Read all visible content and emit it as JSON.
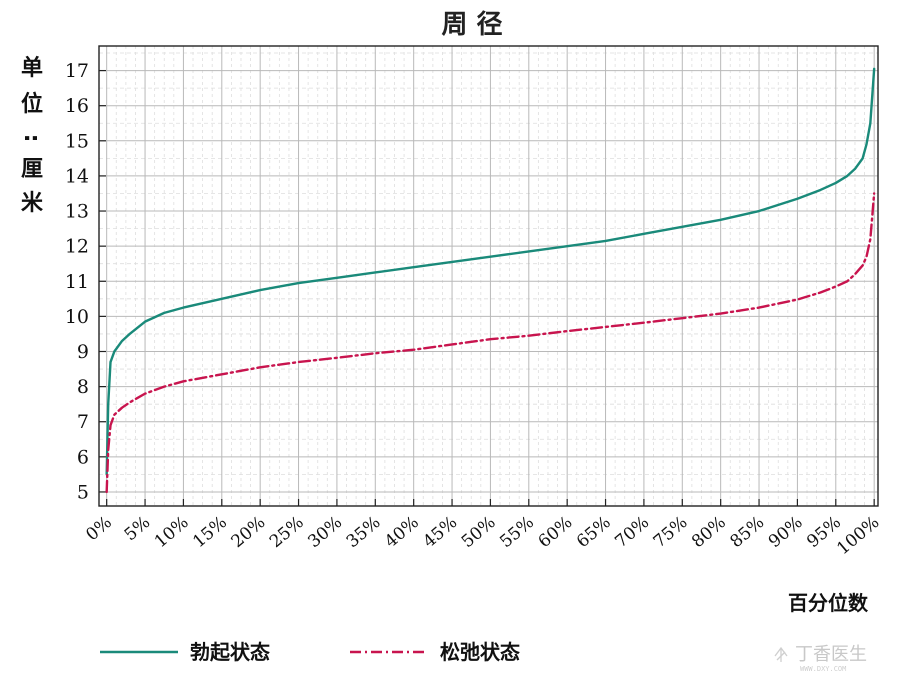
{
  "chart_data": {
    "type": "line",
    "title": "周 径",
    "ylabel_chars": [
      "单",
      "位",
      ":",
      "厘",
      "米"
    ],
    "xlabel": "百分位数",
    "ylim": [
      4.6,
      17.7
    ],
    "xlim": [
      -1,
      100.5
    ],
    "yticks": [
      5,
      6,
      7,
      8,
      9,
      10,
      11,
      12,
      13,
      14,
      15,
      16,
      17
    ],
    "xticks": [
      0,
      5,
      10,
      15,
      20,
      25,
      30,
      35,
      40,
      45,
      50,
      55,
      60,
      65,
      70,
      75,
      80,
      85,
      90,
      95,
      100
    ],
    "xtick_labels": [
      "0%",
      "5%",
      "10%",
      "15%",
      "20%",
      "25%",
      "30%",
      "35%",
      "40%",
      "45%",
      "50%",
      "55%",
      "60%",
      "65%",
      "70%",
      "75%",
      "80%",
      "85%",
      "90%",
      "95%",
      "100%"
    ],
    "grid": true,
    "legend_position": "bottom",
    "series": [
      {
        "name": "勃起状态",
        "color": "#1a8a7a",
        "style": "solid",
        "x": [
          0,
          0.2,
          0.5,
          1,
          2,
          3,
          5,
          7.5,
          10,
          15,
          20,
          25,
          30,
          35,
          40,
          45,
          50,
          55,
          60,
          65,
          70,
          75,
          80,
          85,
          90,
          93,
          95,
          96.5,
          97.5,
          98.5,
          99,
          99.5,
          100
        ],
        "y": [
          5.5,
          7.5,
          8.7,
          9.0,
          9.3,
          9.5,
          9.85,
          10.1,
          10.25,
          10.5,
          10.75,
          10.95,
          11.1,
          11.25,
          11.4,
          11.55,
          11.7,
          11.85,
          12.0,
          12.15,
          12.35,
          12.55,
          12.75,
          13.0,
          13.35,
          13.6,
          13.8,
          14.0,
          14.2,
          14.5,
          14.9,
          15.5,
          17.05
        ]
      },
      {
        "name": "松弛状态",
        "color": "#c8144e",
        "style": "dashdot",
        "x": [
          0,
          0.2,
          0.5,
          1,
          2,
          3,
          5,
          7.5,
          10,
          15,
          20,
          25,
          30,
          35,
          40,
          45,
          50,
          55,
          60,
          65,
          70,
          75,
          80,
          85,
          90,
          93,
          95,
          96.5,
          97.5,
          98.5,
          99,
          99.5,
          100
        ],
        "y": [
          5.0,
          6.2,
          6.9,
          7.2,
          7.4,
          7.55,
          7.8,
          8.0,
          8.15,
          8.35,
          8.55,
          8.7,
          8.82,
          8.95,
          9.05,
          9.2,
          9.35,
          9.45,
          9.58,
          9.7,
          9.82,
          9.95,
          10.08,
          10.25,
          10.48,
          10.68,
          10.85,
          11.0,
          11.2,
          11.45,
          11.7,
          12.2,
          13.5
        ]
      }
    ]
  },
  "watermark": {
    "text": "丁香医生",
    "sub": "WWW.DXY.COM"
  }
}
